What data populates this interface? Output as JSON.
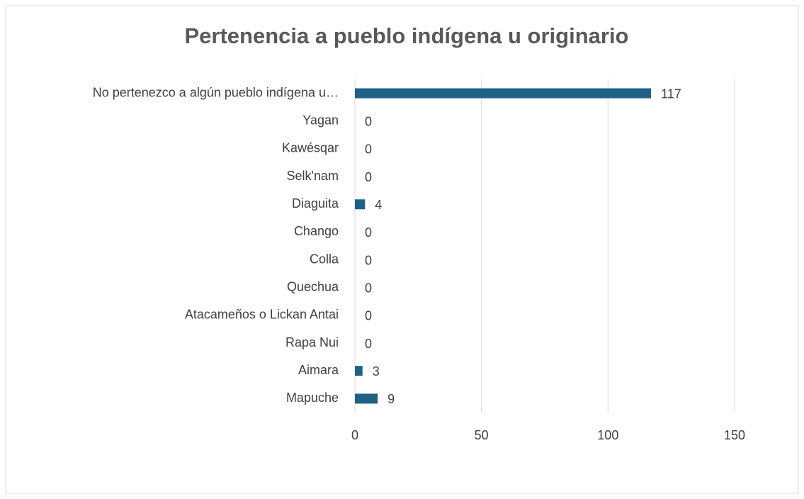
{
  "chart_data": {
    "type": "barh",
    "title": "Pertenencia a pueblo indígena u originario",
    "categories": [
      "No pertenezco a algún pueblo indígena u…",
      "Yagan",
      "Kawésqar",
      "Selk'nam",
      "Diaguita",
      "Chango",
      "Colla",
      "Quechua",
      "Atacameños o Lickan Antai",
      "Rapa Nui",
      "Aimara",
      "Mapuche"
    ],
    "values": [
      117,
      0,
      0,
      0,
      4,
      0,
      0,
      0,
      0,
      0,
      3,
      9
    ],
    "color": "#1f6184",
    "xlim": [
      0,
      150
    ],
    "xticks": [
      0,
      50,
      100,
      150
    ],
    "grid": true
  }
}
